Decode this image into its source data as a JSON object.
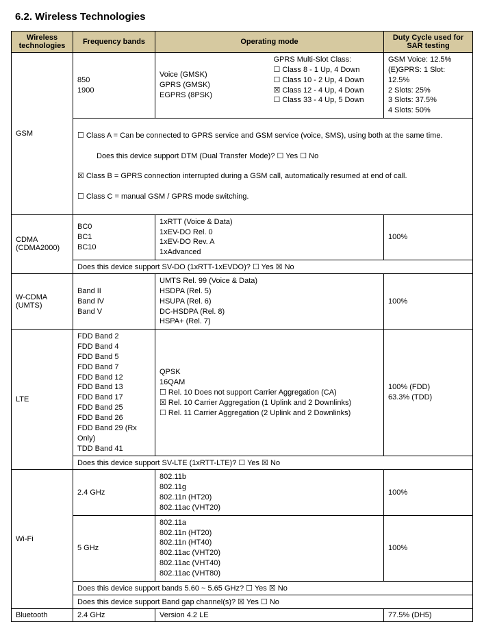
{
  "section_title": "6.2.   Wireless Technologies",
  "headers": {
    "tech": "Wireless technologies",
    "freq": "Frequency bands",
    "mode": "Operating mode",
    "duty": "Duty Cycle used for SAR testing"
  },
  "gsm": {
    "label": "GSM",
    "freq": "850\n1900",
    "mode_left": "Voice (GMSK)\nGPRS (GMSK)\nEGPRS (8PSK)",
    "mode_right": "GPRS Multi-Slot Class:\n☐ Class  8  - 1 Up, 4 Down\n☐ Class 10 - 2 Up, 4 Down\n☒ Class 12 - 4 Up, 4 Down\n☐ Class 33 - 4 Up, 5 Down",
    "duty": "GSM Voice: 12.5%\n(E)GPRS: 1 Slot: 12.5%\n               2 Slots: 25%\n               3 Slots: 37.5%\n               4 Slots: 50%",
    "footer_a": "☐ Class A = Can be connected to GPRS service and GSM service (voice, SMS), using both at the same time.",
    "footer_b": "Does this device support DTM (Dual Transfer Mode)? ☐ Yes ☐ No",
    "footer_c": "☒ Class B = GPRS connection interrupted during a GSM call, automatically resumed at end of call.",
    "footer_d": "☐ Class C = manual GSM / GPRS mode switching."
  },
  "cdma": {
    "label": "CDMA (CDMA2000)",
    "freq": "BC0\nBC1\nBC10",
    "mode": "1xRTT (Voice & Data)\n1xEV-DO Rel. 0\n1xEV-DO Rev. A\n1xAdvanced",
    "duty": "100%",
    "footer": "Does this device support SV-DO (1xRTT-1xEVDO)? ☐ Yes ☒ No"
  },
  "wcdma": {
    "label": "W-CDMA (UMTS)",
    "freq": "Band II\nBand IV\nBand V",
    "mode": "UMTS Rel. 99 (Voice & Data)\nHSDPA (Rel. 5)\nHSUPA (Rel. 6)\nDC-HSDPA (Rel. 8)\nHSPA+ (Rel. 7)",
    "duty": "100%"
  },
  "lte": {
    "label": "LTE",
    "freq": "FDD Band 2\nFDD Band 4\nFDD Band 5\nFDD Band 7\nFDD Band 12\nFDD Band 13\nFDD Band 17\nFDD Band 25\nFDD Band 26\nFDD Band 29 (Rx Only)\nTDD Band 41",
    "mode": "QPSK\n16QAM\n☐ Rel. 10 Does not support Carrier Aggregation (CA)\n☒ Rel. 10 Carrier Aggregation (1 Uplink and 2 Downlinks)\n☐ Rel. 11 Carrier Aggregation (2 Uplink and 2 Downlinks)",
    "duty": "100% (FDD)\n63.3% (TDD)",
    "footer": "Does this device support SV-LTE (1xRTT-LTE)? ☐ Yes ☒ No"
  },
  "wifi": {
    "label": "Wi-Fi",
    "g24": {
      "freq": "2.4 GHz",
      "mode": "802.11b\n802.11g\n802.11n (HT20)\n802.11ac (VHT20)",
      "duty": "100%"
    },
    "g5": {
      "freq": "5 GHz",
      "mode": "802.11a\n802.11n (HT20)\n802.11n (HT40)\n802.11ac (VHT20)\n802.11ac (VHT40)\n802.11ac (VHT80)",
      "duty": "100%"
    },
    "footer_a": "Does this device support bands 5.60 ~ 5.65 GHz? ☐ Yes ☒ No",
    "footer_b": "Does this device support Band gap channel(s)? ☒ Yes ☐ No"
  },
  "bluetooth": {
    "label": "Bluetooth",
    "freq": "2.4 GHz",
    "mode": "Version 4.2 LE",
    "duty": "77.5% (DH5)"
  }
}
